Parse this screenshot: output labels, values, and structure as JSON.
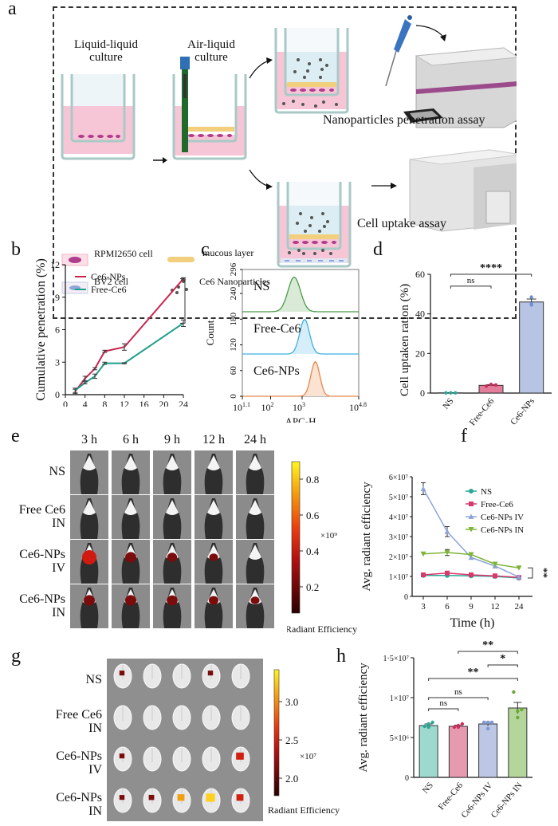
{
  "panels": {
    "a": {
      "label": "a",
      "culture_1": [
        "Liquid-liquid",
        "culture"
      ],
      "culture_2": [
        "Air-liquid",
        "culture"
      ],
      "assay_1": "Nanoparticles penetration assay",
      "assay_2": "Cell uptake assay",
      "legend": {
        "rpmi": "RPMI2650 cell",
        "mucous": "mucous layer",
        "bv2": "BV2 cell",
        "np": "Ce6 Nanoparticles"
      },
      "colors": {
        "medium": "#f7c6d6",
        "mucous": "#f1cf7c",
        "cell": "#b03c8c",
        "bv2": "#8ea5d8",
        "well": "#a9c9c6",
        "apical": "#dceef3",
        "np": "#555555"
      }
    },
    "b": {
      "label": "b"
    },
    "c": {
      "label": "c"
    },
    "d": {
      "label": "d"
    },
    "e": {
      "label": "e",
      "timepoints": [
        "3 h",
        "6 h",
        "9 h",
        "12 h",
        "24 h"
      ],
      "rows": [
        [
          "NS"
        ],
        [
          "Free Ce6",
          "IN"
        ],
        [
          "Ce6-NPs",
          "IV"
        ],
        [
          "Ce6-NPs",
          "IN"
        ]
      ],
      "signal": [
        [
          0,
          0,
          0,
          0,
          0
        ],
        [
          0,
          0,
          0,
          0,
          0
        ],
        [
          1.0,
          0.6,
          0.45,
          0.3,
          0
        ],
        [
          0.6,
          0.6,
          0.55,
          0.4,
          0.3
        ]
      ],
      "colorbar": {
        "ticks": [
          "0.8",
          "0.6",
          "0.4",
          "0.2"
        ],
        "scale": "×10⁹",
        "title": "Radiant Efficiency"
      }
    },
    "f": {
      "label": "f"
    },
    "g": {
      "label": "g",
      "rows": [
        [
          "NS"
        ],
        [
          "Free Ce6",
          "IN"
        ],
        [
          "Ce6-NPs",
          "IV"
        ],
        [
          "Ce6-NPs",
          "IN"
        ]
      ],
      "colorbar": {
        "ticks": [
          "3.0",
          "2.5",
          "2.0"
        ],
        "scale": "×10⁷",
        "title": "Radiant Efficiency"
      }
    },
    "h": {
      "label": "h"
    }
  },
  "chart_data": [
    {
      "id": "b",
      "type": "line",
      "xlabel": "Time (h)",
      "ylabel": "Cumulative penetration (%)",
      "xlim": [
        0,
        24
      ],
      "ylim": [
        0,
        12
      ],
      "xticks": [
        "0",
        "4",
        "8",
        "12",
        "16",
        "20",
        "24"
      ],
      "yticks": [
        "0",
        "3",
        "6",
        "9",
        "12"
      ],
      "legend_position": "top-left",
      "x": [
        2,
        4,
        6,
        8,
        12,
        24
      ],
      "series": [
        {
          "name": "Ce6-NPs",
          "color": "#c8264f",
          "values": [
            0.3,
            1.5,
            2.4,
            4.0,
            4.4,
            10.7
          ],
          "err": [
            0.2,
            0.2,
            0.1,
            0.1,
            0.3,
            0.1
          ]
        },
        {
          "name": "Free-Ce6",
          "color": "#1f9e8a",
          "values": [
            0.4,
            1.1,
            1.7,
            2.9,
            2.9,
            6.6
          ],
          "err": [
            0.2,
            0.1,
            0.2,
            0.1,
            0.05,
            0.3
          ]
        }
      ],
      "annotation": "****"
    },
    {
      "id": "c",
      "type": "area",
      "xlabel": "APC-H",
      "ylabel": "Count",
      "xticks": [
        "10^1.1",
        "10^2",
        "10^3",
        "10^4.8"
      ],
      "yticks": [
        "0",
        "60",
        "120",
        "180",
        "240",
        "296"
      ],
      "xlim_log10": [
        1.1,
        4.8
      ],
      "series": [
        {
          "name": "NS",
          "color": "#4a9a4a",
          "fill": "#d9ead6",
          "peak_log10": 2.75,
          "width": 0.28
        },
        {
          "name": "Free-Ce6",
          "color": "#3fb0e0",
          "fill": "#d6eef9",
          "peak_log10": 3.08,
          "width": 0.22
        },
        {
          "name": "Ce6-NPs",
          "color": "#e8864a",
          "fill": "#fbe3d3",
          "peak_log10": 3.42,
          "width": 0.2
        }
      ]
    },
    {
      "id": "d",
      "type": "bar",
      "ylabel": "Cell uptaken ration (%)",
      "categories": [
        "NS",
        "Free-Ce6",
        "Ce6-NPs"
      ],
      "values": [
        0.1,
        3.9,
        46.0
      ],
      "err": [
        0.05,
        0.3,
        1.5
      ],
      "points": [
        [
          0.1,
          0.1,
          0.1
        ],
        [
          3.5,
          4.4,
          4.1
        ],
        [
          48.5,
          44.5,
          45.0
        ]
      ],
      "colors": [
        "#2aa897",
        "#e37d9c",
        "#b7c4e4"
      ],
      "point_colors": [
        "#2aa897",
        "#d12d5c",
        "#6f8fd0"
      ],
      "ylim": [
        0,
        60
      ],
      "yticks": [
        "0",
        "20",
        "40",
        "60"
      ],
      "significance": [
        {
          "from": 0,
          "to": 1,
          "label": "ns"
        },
        {
          "from": 0,
          "to": 2,
          "label": "****"
        }
      ]
    },
    {
      "id": "f",
      "type": "line",
      "xlabel": "Time (h)",
      "ylabel": "Avg. radiant efficiency",
      "categories": [
        "3",
        "6",
        "9",
        "12",
        "24"
      ],
      "ylim": [
        0,
        60000000.0
      ],
      "yticks": [
        "0",
        "1×10⁷",
        "2×10⁷",
        "3×10⁷",
        "4×10⁷",
        "5×10⁷",
        "6×10⁷"
      ],
      "legend_position": "top-right",
      "series": [
        {
          "name": "NS",
          "color": "#2aa897",
          "marker": "circle",
          "values": [
            10500000.0,
            10500000.0,
            10300000.0,
            10000000.0,
            9200000.0
          ]
        },
        {
          "name": "Free-Ce6",
          "color": "#d9386a",
          "marker": "square",
          "values": [
            10800000.0,
            11700000.0,
            10800000.0,
            10300000.0,
            9500000.0
          ]
        },
        {
          "name": "Ce6-NPs IV",
          "color": "#8ea5d8",
          "marker": "triangle-up",
          "values": [
            54000000.0,
            32500000.0,
            19500000.0,
            15200000.0,
            9700000.0
          ],
          "err": [
            3000000.0,
            2500000.0,
            0,
            0,
            0
          ]
        },
        {
          "name": "Ce6-NPs IN",
          "color": "#7fb33a",
          "marker": "triangle-down",
          "values": [
            21300000.0,
            22000000.0,
            21000000.0,
            16200000.0,
            14300000.0
          ],
          "err": [
            0,
            1500000.0,
            0,
            0,
            0
          ]
        }
      ],
      "annotation": "**"
    },
    {
      "id": "h",
      "type": "bar",
      "ylabel": "Avg. radiant efficiency",
      "categories": [
        "NS",
        "Free-Ce6",
        "Ce6-NPs IV",
        "Ce6-NPs IN"
      ],
      "values": [
        6500000.0,
        6400000.0,
        6700000.0,
        8700000.0
      ],
      "err": [
        200000.0,
        150000.0,
        250000.0,
        700000.0
      ],
      "points": [
        [
          6400000.0,
          6700000.0,
          6900000.0,
          6300000.0
        ],
        [
          6300000.0,
          6500000.0,
          6700000.0,
          6300000.0
        ],
        [
          6900000.0,
          6900000.0,
          6900000.0,
          6100000.0
        ],
        [
          10700000.0,
          7500000.0,
          8500000.0,
          8300000.0
        ]
      ],
      "colors": [
        "#9dd9cf",
        "#e69ab0",
        "#bcc7e6",
        "#b5d69a"
      ],
      "point_colors": [
        "#2aa897",
        "#d12d5c",
        "#7c97d6",
        "#6aa83a"
      ],
      "ylim": [
        0,
        15000000.0
      ],
      "yticks": [
        "0",
        "5×10⁶",
        "1×10⁷",
        "1·5×10⁷"
      ],
      "significance": [
        {
          "from": 0,
          "to": 1,
          "label": "ns"
        },
        {
          "from": 0,
          "to": 2,
          "label": "ns"
        },
        {
          "from": 0,
          "to": 3,
          "label": "**"
        },
        {
          "from": 2,
          "to": 3,
          "label": "*"
        },
        {
          "from": 1,
          "to": 3,
          "label": "**"
        }
      ]
    }
  ]
}
